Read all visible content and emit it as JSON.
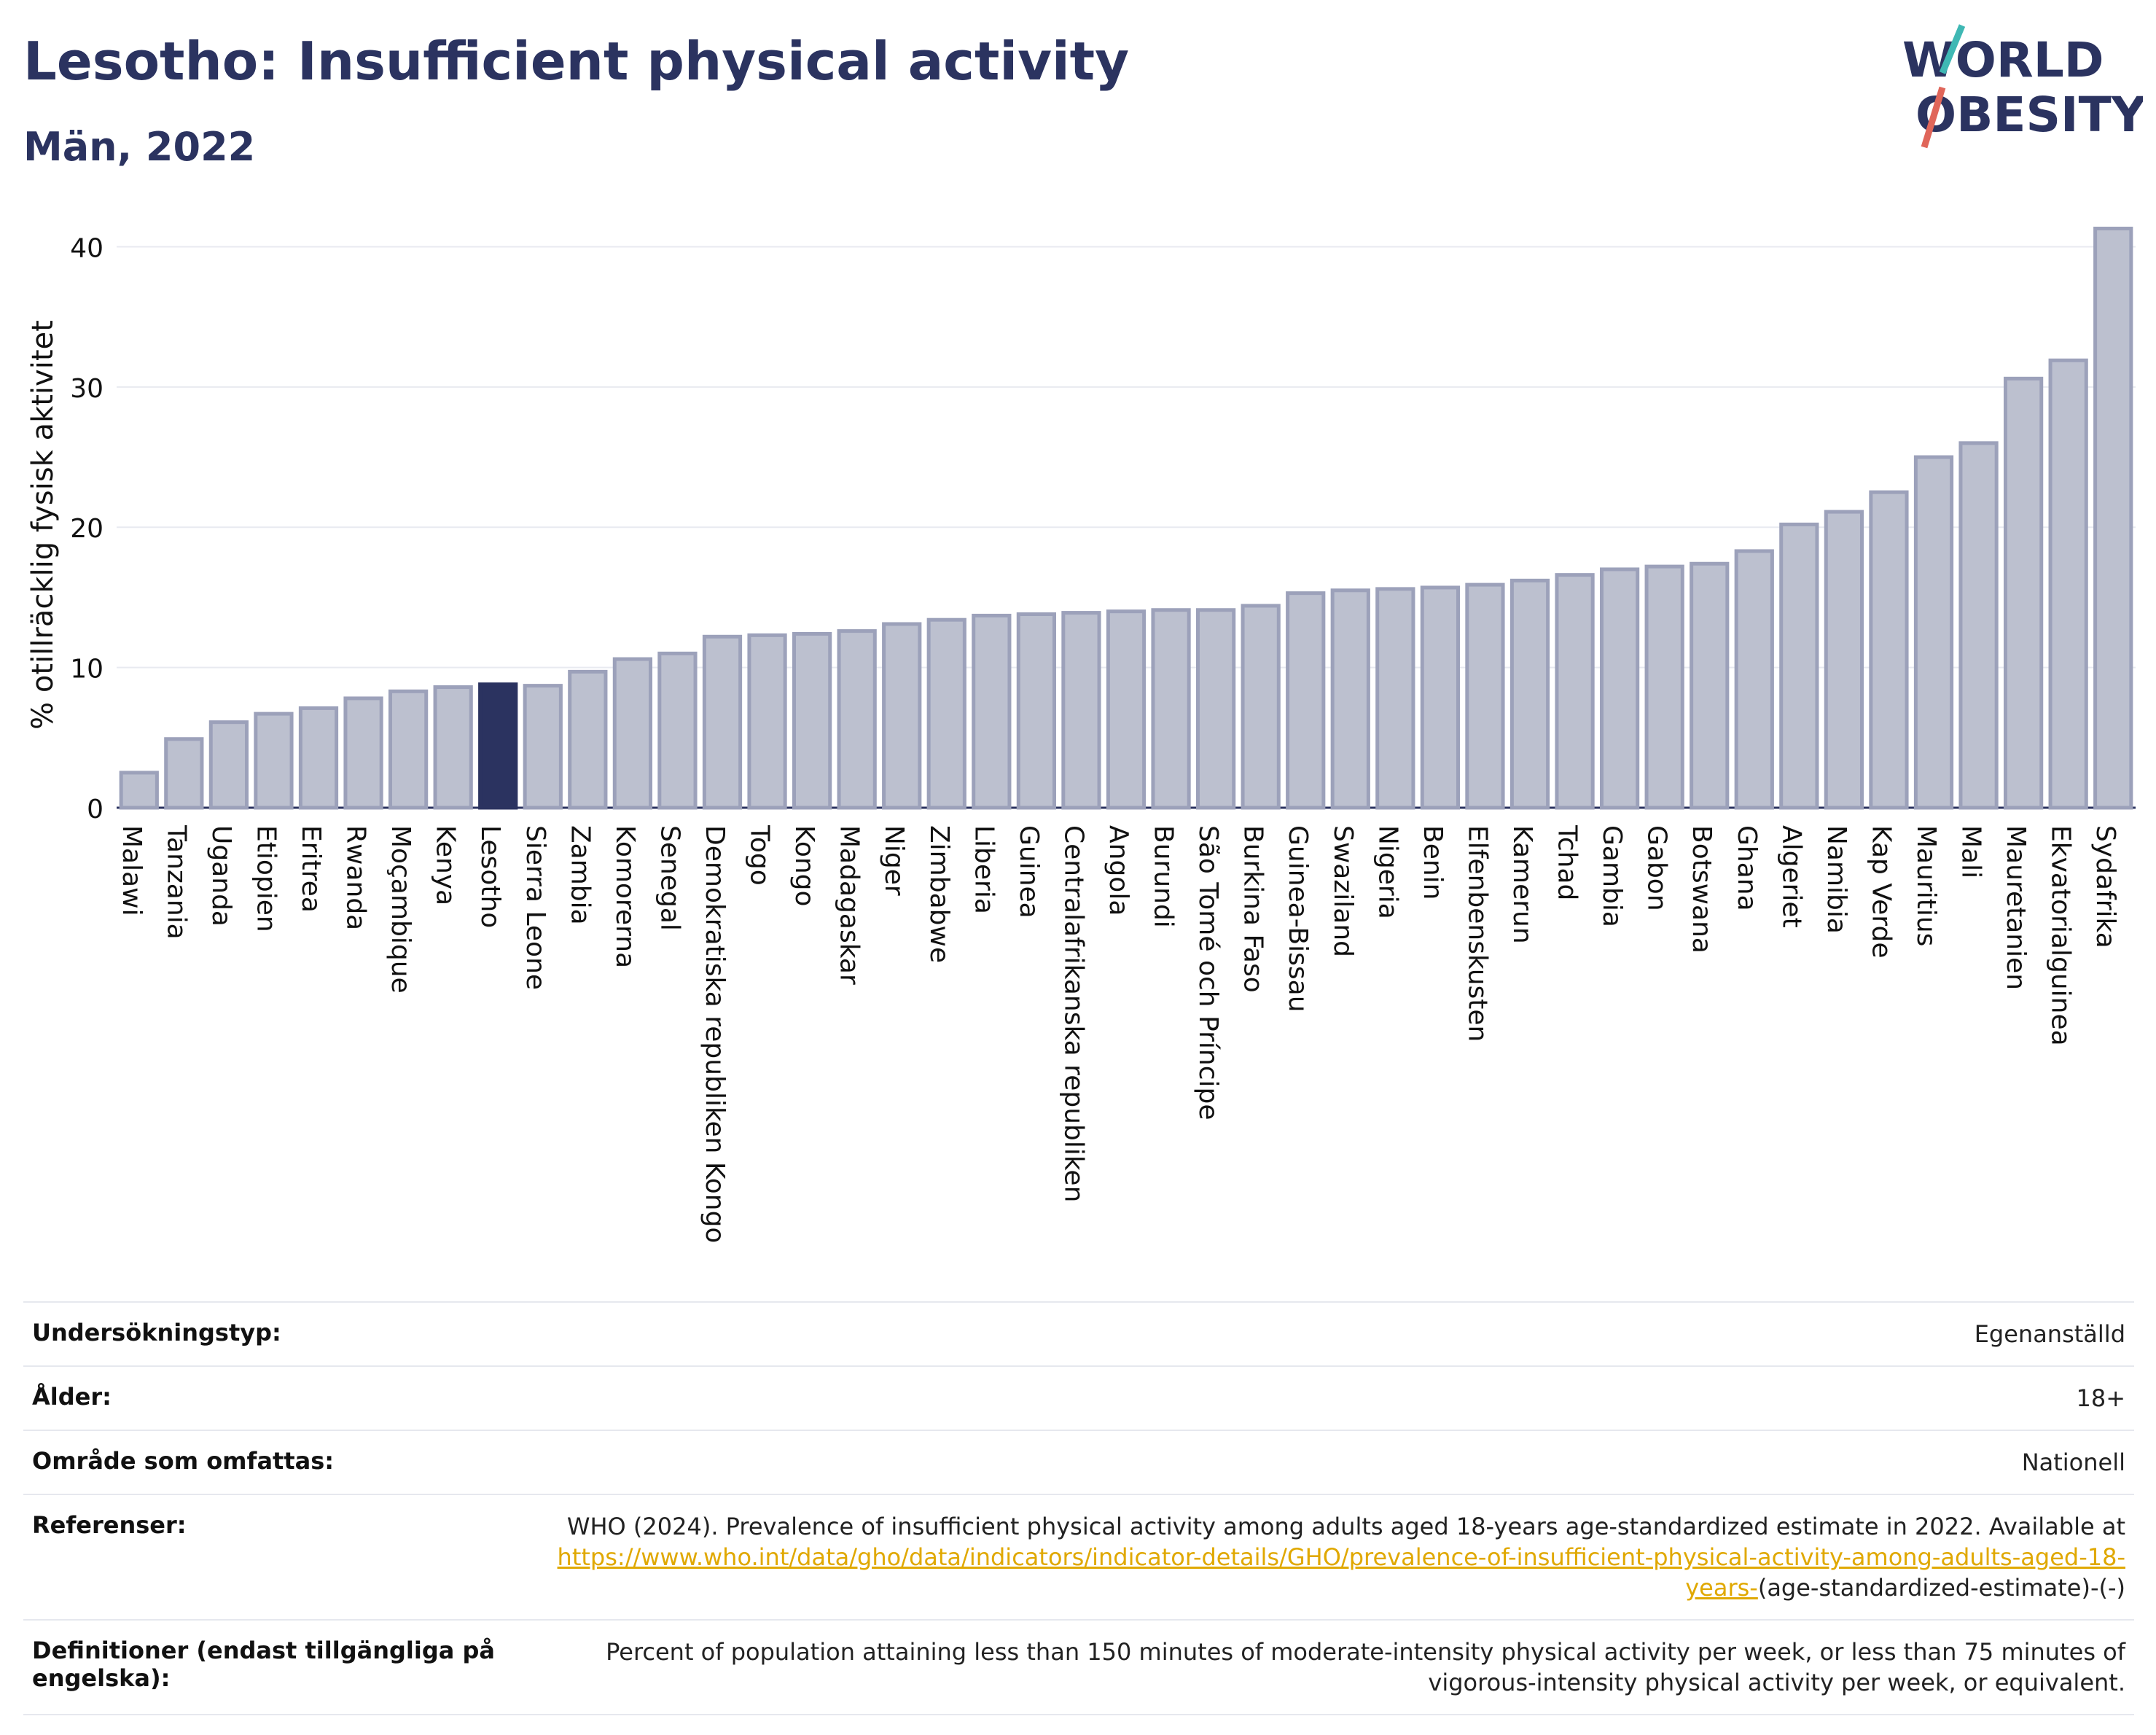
{
  "title": "Lesotho: Insufficient physical activity",
  "subtitle": "Män, 2022",
  "logo": {
    "line1": "WORLD",
    "line2": "OBESITY"
  },
  "colors": {
    "highlight": "#2b3360",
    "bar": "#bcc0cf",
    "bar_stroke": "#9ca1ba",
    "accent_teal": "#3fb8b4",
    "accent_red": "#e0665a",
    "link": "#e0a800"
  },
  "chart_data": {
    "type": "bar",
    "title": "Lesotho: Insufficient physical activity",
    "subtitle": "Män, 2022",
    "ylabel": "% otillräcklig fysisk aktivitet",
    "xlabel": "",
    "ylim": [
      0,
      42
    ],
    "yticks": [
      0,
      10,
      20,
      30,
      40
    ],
    "grid": true,
    "highlight": "Lesotho",
    "categories": [
      "Malawi",
      "Tanzania",
      "Uganda",
      "Etiopien",
      "Eritrea",
      "Rwanda",
      "Moçambique",
      "Kenya",
      "Lesotho",
      "Sierra Leone",
      "Zambia",
      "Komorerna",
      "Senegal",
      "Demokratiska republiken Kongo",
      "Togo",
      "Kongo",
      "Madagaskar",
      "Niger",
      "Zimbabwe",
      "Liberia",
      "Guinea",
      "Centralafrikanska republiken",
      "Angola",
      "Burundi",
      "São Tomé och Príncipe",
      "Burkina Faso",
      "Guinea-Bissau",
      "Swaziland",
      "Nigeria",
      "Benin",
      "Elfenbenskusten",
      "Kamerun",
      "Tchad",
      "Gambia",
      "Gabon",
      "Botswana",
      "Ghana",
      "Algeriet",
      "Namibia",
      "Kap Verde",
      "Mauritius",
      "Mali",
      "Mauretanien",
      "Ekvatorialguinea",
      "Sydafrika"
    ],
    "values": [
      2.5,
      4.9,
      6.1,
      6.7,
      7.1,
      7.8,
      8.3,
      8.6,
      8.8,
      8.7,
      9.7,
      10.6,
      11.0,
      12.2,
      12.3,
      12.4,
      12.6,
      13.1,
      13.4,
      13.7,
      13.8,
      13.9,
      14.0,
      14.1,
      14.1,
      14.4,
      15.3,
      15.5,
      15.6,
      15.7,
      15.9,
      16.2,
      16.6,
      17.0,
      17.2,
      17.4,
      18.3,
      20.2,
      21.1,
      22.5,
      25.0,
      26.0,
      30.6,
      31.9,
      41.3
    ]
  },
  "meta": {
    "survey_label": "Undersökningstyp:",
    "survey_value": "Egenanställd",
    "age_label": "Ålder:",
    "age_value": "18+",
    "area_label": "Område som omfattas:",
    "area_value": "Nationell",
    "ref_label": "Referenser:",
    "ref_text": "WHO (2024). Prevalence of insufficient physical activity among adults aged 18-years age-standardized estimate in 2022. Available at",
    "ref_link": "https://www.who.int/data/gho/data/indicators/indicator-details/GHO/prevalence-of-insufficient-physical-activity-among-adults-aged-18-years-",
    "ref_tail": "(age-standardized-estimate)-(-)",
    "def_label": "Definitioner (endast tillgängliga på engelska):",
    "def_value": "Percent of population attaining less than 150 minutes of moderate-intensity physical activity per week, or less than 75 minutes of vigorous-intensity physical activity per week, or equivalent."
  }
}
